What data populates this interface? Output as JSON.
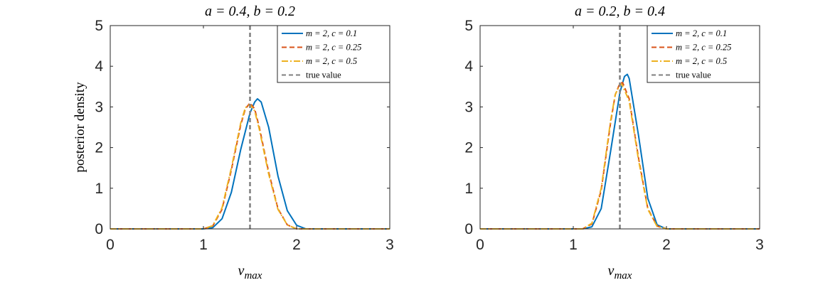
{
  "chart_data": [
    {
      "type": "line",
      "title": "a = 0.4, b = 0.2",
      "xlabel": "v_max",
      "ylabel": "posterior density",
      "xlim": [
        0,
        3
      ],
      "ylim": [
        0,
        5
      ],
      "xticks": [
        "0",
        "1",
        "2",
        "3"
      ],
      "yticks": [
        "0",
        "1",
        "2",
        "3",
        "4",
        "5"
      ],
      "grid": false,
      "legend_position": "top-right",
      "true_value": 1.5,
      "series": [
        {
          "name": "m = 2, c = 0.1",
          "style": "solid",
          "color": "#0072BD",
          "x": [
            0.0,
            1.0,
            1.1,
            1.2,
            1.3,
            1.4,
            1.5,
            1.55,
            1.58,
            1.62,
            1.7,
            1.8,
            1.9,
            2.0,
            2.1,
            3.0
          ],
          "y": [
            0.0,
            0.0,
            0.03,
            0.25,
            0.9,
            1.95,
            2.85,
            3.12,
            3.2,
            3.12,
            2.5,
            1.3,
            0.45,
            0.09,
            0.0,
            0.0
          ]
        },
        {
          "name": "m = 2, c = 0.25",
          "style": "dashed",
          "color": "#D95319",
          "x": [
            0.0,
            1.0,
            1.1,
            1.2,
            1.3,
            1.4,
            1.45,
            1.5,
            1.55,
            1.6,
            1.7,
            1.8,
            1.9,
            2.0,
            3.0
          ],
          "y": [
            0.0,
            0.0,
            0.07,
            0.48,
            1.45,
            2.55,
            2.95,
            3.1,
            2.95,
            2.5,
            1.4,
            0.5,
            0.1,
            0.0,
            0.0
          ]
        },
        {
          "name": "m = 2, c = 0.5",
          "style": "dashdot",
          "color": "#EDB120",
          "x": [
            0.0,
            1.0,
            1.1,
            1.2,
            1.3,
            1.4,
            1.45,
            1.5,
            1.55,
            1.6,
            1.7,
            1.8,
            1.9,
            2.0,
            3.0
          ],
          "y": [
            0.0,
            0.0,
            0.08,
            0.52,
            1.5,
            2.6,
            2.98,
            3.06,
            2.9,
            2.45,
            1.35,
            0.48,
            0.1,
            0.0,
            0.0
          ]
        }
      ],
      "reference_line": {
        "name": "true value",
        "style": "dashed",
        "color": "#7F7F7F"
      }
    },
    {
      "type": "line",
      "title": "a = 0.2, b = 0.4",
      "xlabel": "v_max",
      "ylabel": "",
      "xlim": [
        0,
        3
      ],
      "ylim": [
        0,
        5
      ],
      "xticks": [
        "0",
        "1",
        "2",
        "3"
      ],
      "yticks": [
        "0",
        "1",
        "2",
        "3",
        "4",
        "5"
      ],
      "grid": false,
      "legend_position": "top-right",
      "true_value": 1.5,
      "series": [
        {
          "name": "m = 2, c = 0.1",
          "style": "solid",
          "color": "#0072BD",
          "x": [
            0.0,
            1.1,
            1.2,
            1.3,
            1.4,
            1.5,
            1.55,
            1.58,
            1.6,
            1.7,
            1.8,
            1.9,
            2.0,
            3.0
          ],
          "y": [
            0.0,
            0.0,
            0.05,
            0.5,
            1.9,
            3.35,
            3.75,
            3.8,
            3.7,
            2.3,
            0.75,
            0.1,
            0.0,
            0.0
          ]
        },
        {
          "name": "m = 2, c = 0.25",
          "style": "dashed",
          "color": "#D95319",
          "x": [
            0.0,
            1.1,
            1.2,
            1.3,
            1.4,
            1.45,
            1.5,
            1.53,
            1.6,
            1.7,
            1.8,
            1.9,
            2.0,
            3.0
          ],
          "y": [
            0.0,
            0.0,
            0.12,
            0.95,
            2.6,
            3.3,
            3.58,
            3.6,
            3.2,
            1.75,
            0.5,
            0.07,
            0.0,
            0.0
          ]
        },
        {
          "name": "m = 2, c = 0.5",
          "style": "dashdot",
          "color": "#EDB120",
          "x": [
            0.0,
            1.1,
            1.2,
            1.3,
            1.4,
            1.45,
            1.5,
            1.52,
            1.6,
            1.7,
            1.8,
            1.9,
            2.0,
            3.0
          ],
          "y": [
            0.0,
            0.0,
            0.14,
            1.0,
            2.65,
            3.3,
            3.55,
            3.56,
            3.15,
            1.7,
            0.48,
            0.06,
            0.0,
            0.0
          ]
        }
      ],
      "reference_line": {
        "name": "true value",
        "style": "dashed",
        "color": "#7F7F7F"
      }
    }
  ]
}
